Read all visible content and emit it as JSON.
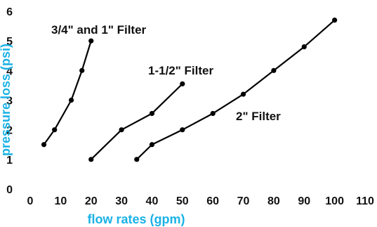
{
  "colors": {
    "axis_title": "#1ab2e6",
    "series": "#000000",
    "text": "#111111"
  },
  "chart_data": {
    "type": "line",
    "xlabel": "flow rates (gpm)",
    "ylabel": "pressure loss (psi)",
    "xlim": [
      0,
      110
    ],
    "ylim": [
      0,
      6
    ],
    "xticks": [
      0,
      10,
      20,
      30,
      40,
      50,
      60,
      70,
      80,
      90,
      100,
      110
    ],
    "yticks": [
      0,
      1,
      2,
      3,
      4,
      5,
      6
    ],
    "grid": false,
    "series": [
      {
        "name": "3/4\" and 1\" Filter",
        "x": [
          4.5,
          8,
          13.5,
          17,
          20
        ],
        "y": [
          1.5,
          2.0,
          3.0,
          4.0,
          5.0
        ]
      },
      {
        "name": "1-1/2\" Filter",
        "x": [
          20,
          30,
          40,
          50
        ],
        "y": [
          1.0,
          2.0,
          2.55,
          3.55
        ]
      },
      {
        "name": "2\" Filter",
        "x": [
          35,
          40,
          50,
          60,
          70,
          80,
          90,
          100
        ],
        "y": [
          1.0,
          1.5,
          2.0,
          2.55,
          3.2,
          4.0,
          4.8,
          5.7
        ]
      }
    ]
  }
}
